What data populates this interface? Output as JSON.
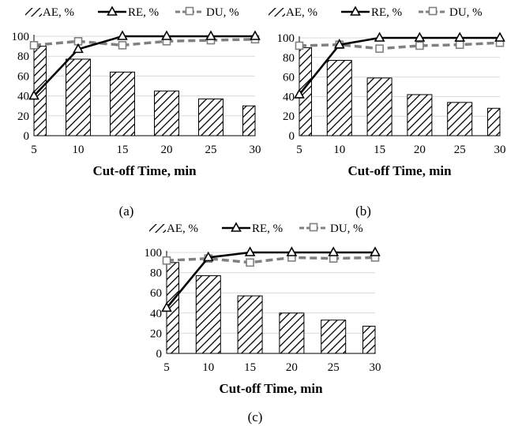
{
  "charts": [
    {
      "panel_label": "(a)",
      "legend": [
        "AE, %",
        "RE, %",
        "DU, %"
      ],
      "xlabel": "Cut-off Time, min",
      "categories": [
        "5",
        "10",
        "15",
        "20",
        "25",
        "30"
      ],
      "yticks": [
        "0",
        "20",
        "40",
        "60",
        "80",
        "100"
      ]
    },
    {
      "panel_label": "(b)",
      "legend": [
        "AE, %",
        "RE, %",
        "DU, %"
      ],
      "xlabel": "Cut-off Time, min",
      "categories": [
        "5",
        "10",
        "15",
        "20",
        "25",
        "30"
      ],
      "yticks": [
        "0",
        "20",
        "40",
        "60",
        "80",
        "100"
      ]
    },
    {
      "panel_label": "(c)",
      "legend": [
        "AE, %",
        "RE, %",
        "DU, %"
      ],
      "xlabel": "Cut-off Time, min",
      "categories": [
        "5",
        "10",
        "15",
        "20",
        "25",
        "30"
      ],
      "yticks": [
        "0",
        "20",
        "40",
        "60",
        "80",
        "100"
      ]
    }
  ],
  "chart_data": [
    {
      "type": "bar",
      "xlabel": "Cut-off Time, min",
      "ylabel": "",
      "ylim": [
        0,
        100
      ],
      "legend_position": "top",
      "categories": [
        "5",
        "10",
        "15",
        "20",
        "25",
        "30"
      ],
      "series": [
        {
          "name": "AE, %",
          "type": "bar",
          "values": [
            90,
            77,
            64,
            45,
            37,
            30
          ],
          "pattern": "diagonal-hatch"
        },
        {
          "name": "RE, %",
          "type": "line",
          "values": [
            40,
            87,
            100,
            100,
            100,
            100
          ],
          "color": "#000000",
          "marker": "triangle"
        },
        {
          "name": "DU, %",
          "type": "line",
          "values": [
            91,
            95,
            91,
            95,
            96,
            97
          ],
          "color": "#808080",
          "marker": "square",
          "dashed": true
        }
      ]
    },
    {
      "type": "bar",
      "xlabel": "Cut-off Time, min",
      "ylabel": "",
      "ylim": [
        0,
        100
      ],
      "legend_position": "top",
      "categories": [
        "5",
        "10",
        "15",
        "20",
        "25",
        "30"
      ],
      "series": [
        {
          "name": "AE, %",
          "type": "bar",
          "values": [
            90,
            77,
            59,
            42,
            34,
            28
          ],
          "pattern": "diagonal-hatch"
        },
        {
          "name": "RE, %",
          "type": "line",
          "values": [
            42,
            93,
            100,
            100,
            100,
            100
          ],
          "color": "#000000",
          "marker": "triangle"
        },
        {
          "name": "DU, %",
          "type": "line",
          "values": [
            92,
            93,
            89,
            92,
            93,
            95
          ],
          "color": "#808080",
          "marker": "square",
          "dashed": true
        }
      ]
    },
    {
      "type": "bar",
      "xlabel": "Cut-off Time, min",
      "ylabel": "",
      "ylim": [
        0,
        100
      ],
      "legend_position": "top",
      "categories": [
        "5",
        "10",
        "15",
        "20",
        "25",
        "30"
      ],
      "series": [
        {
          "name": "AE, %",
          "type": "bar",
          "values": [
            90,
            77,
            57,
            40,
            33,
            27
          ],
          "pattern": "diagonal-hatch"
        },
        {
          "name": "RE, %",
          "type": "line",
          "values": [
            45,
            95,
            100,
            100,
            100,
            100
          ],
          "color": "#000000",
          "marker": "triangle"
        },
        {
          "name": "DU, %",
          "type": "line",
          "values": [
            92,
            94,
            90,
            95,
            94,
            95
          ],
          "color": "#808080",
          "marker": "square",
          "dashed": true
        }
      ]
    }
  ]
}
